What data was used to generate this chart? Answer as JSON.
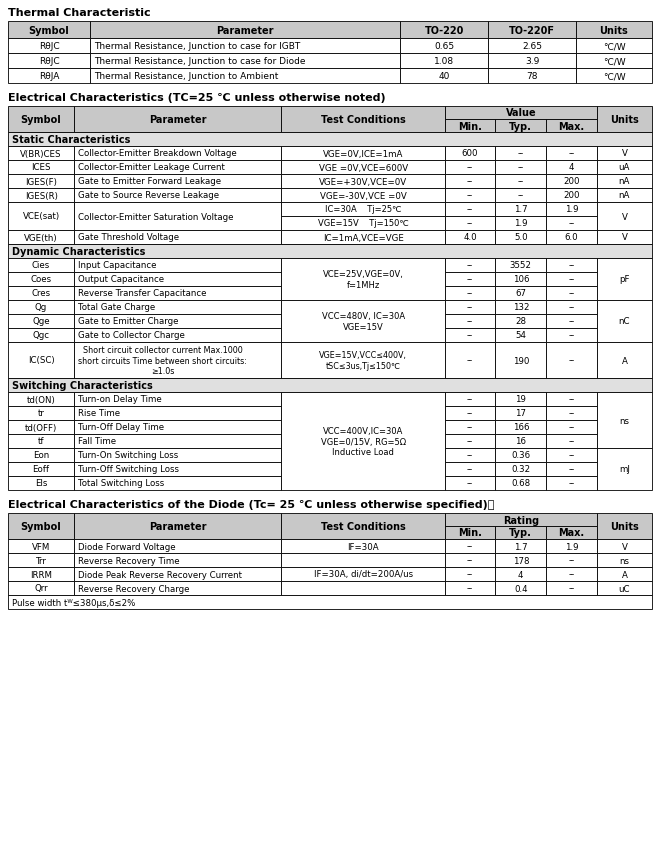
{
  "thermal_title": "Thermal Characteristic",
  "thermal_headers": [
    "Symbol",
    "Parameter",
    "TO-220",
    "TO-220F",
    "Units"
  ],
  "thermal_rows": [
    [
      "RθJC",
      "Thermal Resistance, Junction to case for IGBT",
      "0.65",
      "2.65",
      "°C/W"
    ],
    [
      "RθJC",
      "Thermal Resistance, Junction to case for Diode",
      "1.08",
      "3.9",
      "°C/W"
    ],
    [
      "RθJA",
      "Thermal Resistance, Junction to Ambient",
      "40",
      "78",
      "°C/W"
    ]
  ],
  "elec_title": "Electrical Characteristics (TC=25 ℃ unless otherwise noted)",
  "static_label": "Static Characteristics",
  "dynamic_label": "Dynamic Characteristics",
  "switching_label": "Switching Characteristics",
  "diode_title": "Electrical Characteristics of the Diode (Tc= 25 ℃ unless otherwise specified)：",
  "diode_footnote": "Pulse width tᵂ≤380μs,δ≤2%",
  "bg_color": "#ffffff",
  "header_bg": "#c8c8c8",
  "section_bg": "#e0e0e0"
}
